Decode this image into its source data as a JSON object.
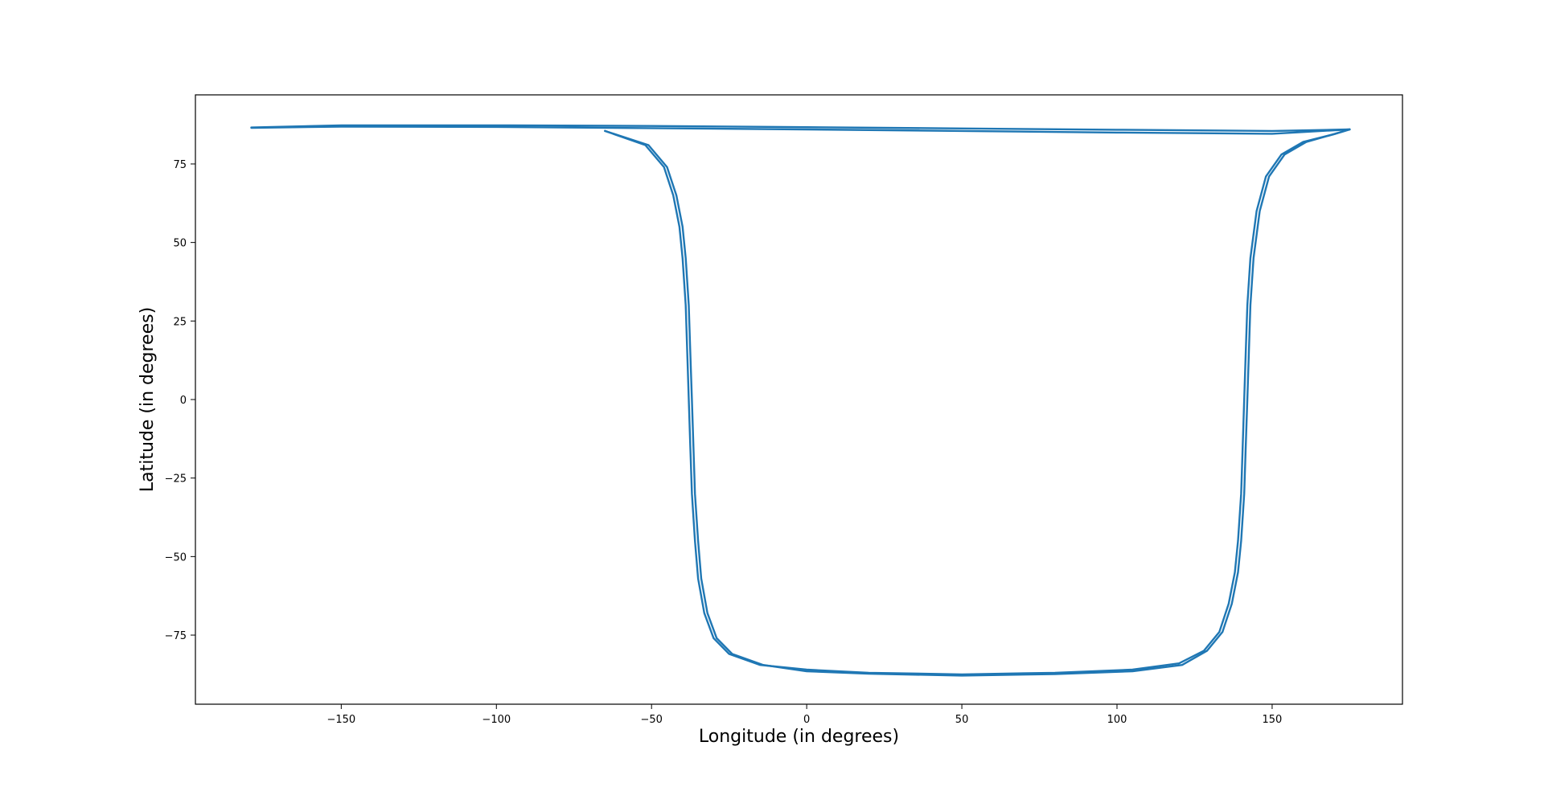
{
  "chart_data": {
    "type": "line",
    "title": "",
    "xlabel": "Longitude (in degrees)",
    "ylabel": "Latitude (in degrees)",
    "xlim": [
      -197,
      192
    ],
    "ylim": [
      -97,
      97
    ],
    "xticks": [
      -150,
      -100,
      -50,
      0,
      50,
      100,
      150
    ],
    "yticks": [
      -75,
      -50,
      -25,
      0,
      25,
      50,
      75
    ],
    "xtick_labels": [
      "−150",
      "−100",
      "−50",
      "0",
      "50",
      "100",
      "150"
    ],
    "ytick_labels": [
      "−75",
      "−50",
      "−25",
      "0",
      "25",
      "50",
      "75"
    ],
    "grid": false,
    "legend": "none",
    "colors": {
      "series": "#1f77b4",
      "axes": "#000000",
      "background": "#ffffff"
    },
    "series": [
      {
        "x": [
          -179,
          -150,
          -100,
          -50,
          0,
          50,
          100,
          150,
          175
        ],
        "y": [
          86.5,
          86.9,
          86.8,
          86.4,
          86.0,
          85.5,
          85.0,
          84.6,
          86.0
        ]
      },
      {
        "x": [
          -179,
          -150,
          -100,
          -50,
          0,
          50,
          100,
          150,
          175
        ],
        "y": [
          86.6,
          87.3,
          87.3,
          87.1,
          86.7,
          86.3,
          85.9,
          85.5,
          86.0
        ]
      },
      {
        "x": [
          -65,
          -52,
          -46,
          -43,
          -41,
          -40,
          -39,
          -38.5,
          -38,
          -37.5,
          -37,
          -36,
          -35,
          -33,
          -30,
          -25,
          -15,
          0,
          20,
          50,
          80,
          105,
          120,
          128,
          133,
          136,
          138,
          139,
          140,
          140.5,
          141,
          141.5,
          142,
          143,
          145,
          148,
          153,
          160,
          170,
          175
        ],
        "y": [
          85.5,
          81,
          74,
          65,
          55,
          45,
          30,
          15,
          0,
          -15,
          -30,
          -45,
          -57,
          -68,
          -76,
          -81,
          -84.5,
          -86,
          -87,
          -87.5,
          -87,
          -86,
          -84,
          -80,
          -74,
          -65,
          -55,
          -45,
          -30,
          -15,
          0,
          15,
          30,
          45,
          60,
          71,
          78,
          82,
          84.5,
          86
        ]
      },
      {
        "x": [
          -65,
          -51,
          -45,
          -42,
          -40,
          -39,
          -38,
          -37.5,
          -37,
          -36.5,
          -36,
          -35,
          -34,
          -32,
          -29,
          -24,
          -14,
          0,
          20,
          50,
          80,
          105,
          121,
          129,
          134,
          137,
          139,
          140,
          141,
          141.5,
          142,
          142.5,
          143,
          144,
          146,
          149,
          154,
          161,
          170,
          175
        ],
        "y": [
          85.5,
          81,
          74,
          65,
          55,
          45,
          30,
          15,
          0,
          -15,
          -30,
          -45,
          -57,
          -68,
          -76,
          -81,
          -84.5,
          -86.5,
          -87.3,
          -87.9,
          -87.4,
          -86.5,
          -84.5,
          -80,
          -74,
          -65,
          -55,
          -45,
          -30,
          -15,
          0,
          15,
          30,
          45,
          60,
          71,
          78,
          82,
          84.5,
          86
        ]
      }
    ]
  }
}
